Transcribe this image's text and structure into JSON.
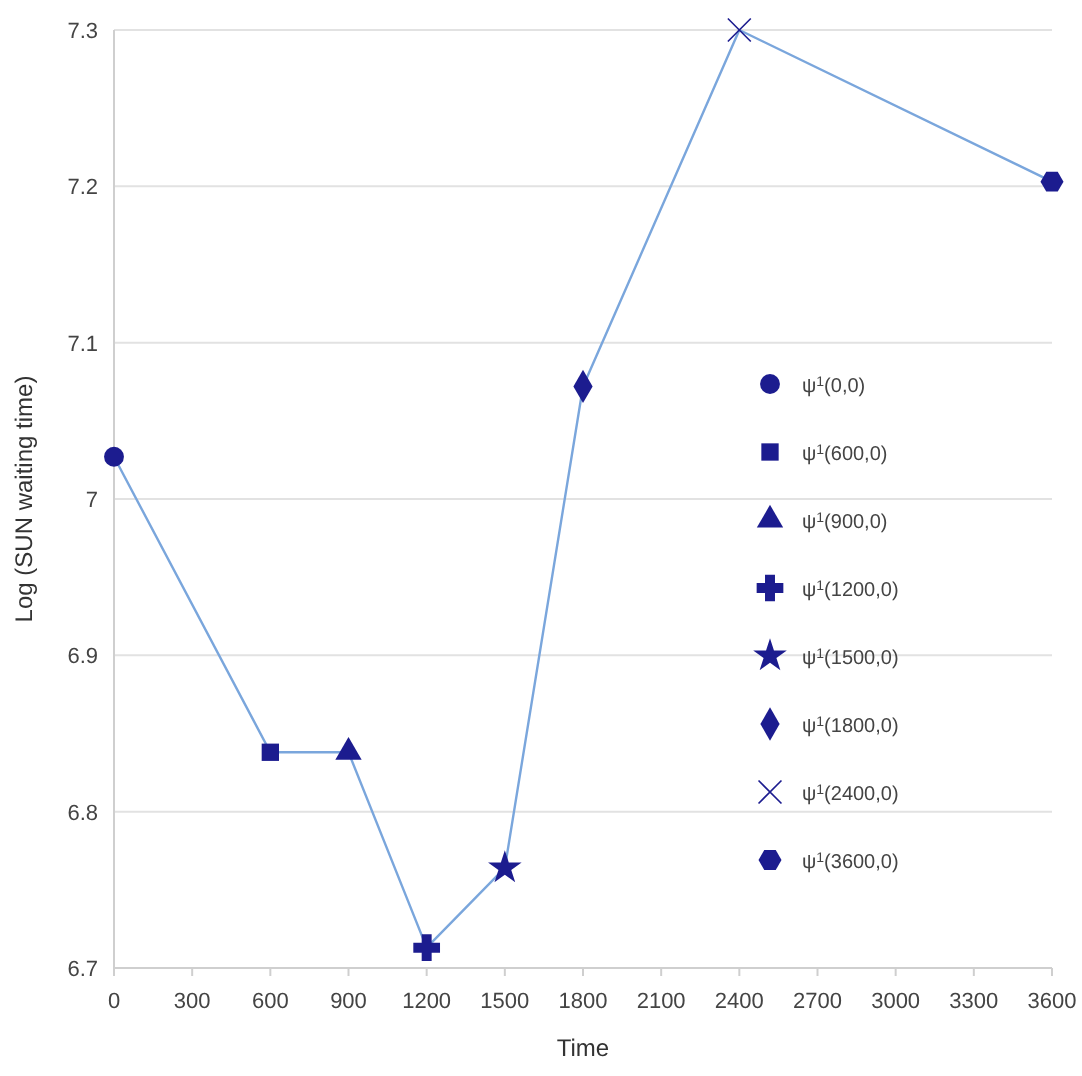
{
  "chart_data": {
    "type": "scatter",
    "xlabel": "Time",
    "ylabel": "Log (SUN waiting time)",
    "xlim": [
      0,
      3600
    ],
    "xticks": [
      0,
      300,
      600,
      900,
      1200,
      1500,
      1800,
      2100,
      2400,
      2700,
      3000,
      3300,
      3600
    ],
    "ylim": [
      6.7,
      7.3
    ],
    "yticks": [
      6.7,
      6.8,
      6.9,
      7,
      7.1,
      7.2,
      7.3
    ],
    "grid": "y",
    "legend": "right",
    "series": [
      {
        "type": "line",
        "color": "#7aa6dc",
        "marker": "none",
        "x": [
          0,
          600,
          900,
          1200,
          1500,
          1800,
          2400,
          3600
        ],
        "values": [
          7.027,
          6.838,
          6.838,
          6.713,
          6.764,
          7.072,
          7.3,
          7.203
        ]
      },
      {
        "name": "ψ$^{1}$(0,0)",
        "color": "#1c1c8f",
        "marker": "circle",
        "x": [
          0
        ],
        "values": [
          7.027
        ]
      },
      {
        "name": "ψ$^{1}$(600,0)",
        "color": "#1c1c8f",
        "marker": "square",
        "x": [
          600
        ],
        "values": [
          6.838
        ]
      },
      {
        "name": "ψ$^{1}$(900,0)",
        "color": "#1c1c8f",
        "marker": "triangle",
        "x": [
          900
        ],
        "values": [
          6.838
        ]
      },
      {
        "name": "ψ$^{1}$(1200,0)",
        "color": "#1c1c8f",
        "marker": "plus",
        "x": [
          1200
        ],
        "values": [
          6.713
        ]
      },
      {
        "name": "ψ$^{1}$(1500,0)",
        "color": "#1c1c8f",
        "marker": "star",
        "x": [
          1500
        ],
        "values": [
          6.764
        ]
      },
      {
        "name": "ψ$^{1}$(1800,0)",
        "color": "#1c1c8f",
        "marker": "diamond",
        "x": [
          1800
        ],
        "values": [
          7.072
        ]
      },
      {
        "name": "ψ$^{1}$(2400,0)",
        "color": "#1c1c8f",
        "marker": "cross",
        "x": [
          2400
        ],
        "values": [
          7.3
        ]
      },
      {
        "name": "ψ$^{1}$(3600,0)",
        "color": "#1c1c8f",
        "x": [
          3600
        ],
        "values": [
          7.203
        ]
      }
    ]
  }
}
